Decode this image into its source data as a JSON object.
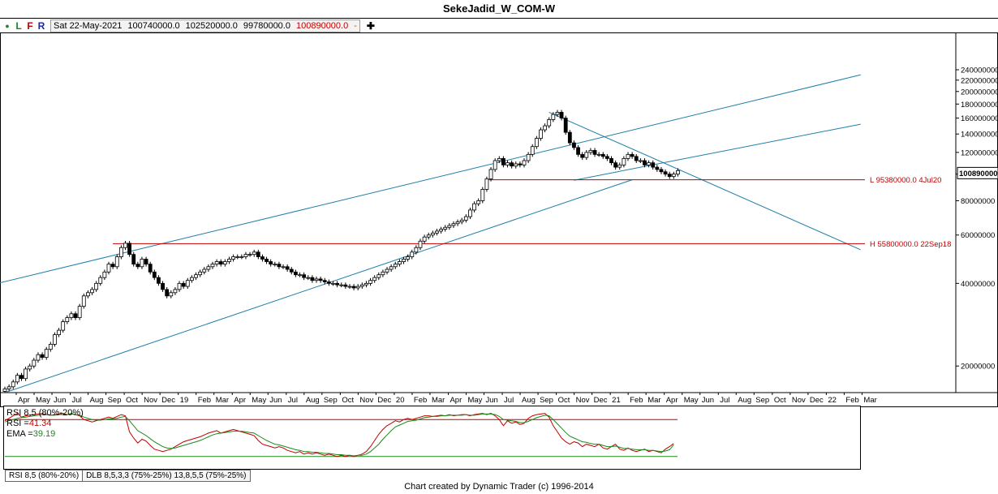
{
  "window": {
    "title": "SekeJadid_W_COM-W"
  },
  "infobar": {
    "toggles": [
      {
        "label": "●",
        "color": "#1a8a1a"
      },
      {
        "label": "L",
        "color": "#1a8a1a"
      },
      {
        "label": "F",
        "color": "#c00000"
      },
      {
        "label": "R",
        "color": "#1a2a9a"
      }
    ],
    "date": "Sat 22-May-2021",
    "open": "100740000.0",
    "high": "102520000.0",
    "low": "99780000.0",
    "close": "100890000.0",
    "change": "-",
    "add_icon": "plus-icon"
  },
  "chart_data": [
    {
      "type": "candlestick",
      "title": "SekeJadid_W_COM-W",
      "scale": "log",
      "ylim": [
        16000000,
        250000000
      ],
      "y_ticks": [
        "240000000",
        "220000000",
        "200000000",
        "180000000",
        "160000000",
        "140000000",
        "120000000",
        "100000000",
        "80000000",
        "60000000",
        "40000000",
        "20000000"
      ],
      "y_tick_values": [
        240000000,
        220000000,
        200000000,
        180000000,
        160000000,
        140000000,
        120000000,
        100000000,
        80000000,
        60000000,
        40000000,
        20000000
      ],
      "last_price_label": "100890000",
      "x_labels": [
        "Apr",
        "May",
        "Jun",
        "Jul",
        "Aug",
        "Sep",
        "Oct",
        "Nov",
        "Dec",
        "19",
        "Feb",
        "Mar",
        "Apr",
        "May",
        "Jun",
        "Jul",
        "Aug",
        "Sep",
        "Oct",
        "Nov",
        "Dec",
        "20",
        "Feb",
        "Mar",
        "Apr",
        "May",
        "Jun",
        "Jul",
        "Aug",
        "Sep",
        "Oct",
        "Nov",
        "Dec",
        "21",
        "Feb",
        "Mar",
        "Apr",
        "May",
        "Jun",
        "Jul",
        "Aug",
        "Sep",
        "Oct",
        "Nov",
        "Dec",
        "22",
        "Feb",
        "Mar"
      ],
      "x_label_weeks": [
        0,
        4.3,
        8.6,
        13,
        17.3,
        21.6,
        26,
        30.3,
        34.6,
        39,
        43.3,
        47.6,
        52,
        56.3,
        60.6,
        65,
        69.3,
        73.6,
        78,
        82.3,
        86.6,
        91,
        95.3,
        99.6,
        104,
        108.3,
        112.6,
        117,
        121.3,
        125.6,
        130,
        134.3,
        138.6,
        143,
        147.3,
        151.6,
        156,
        160.3,
        164.6,
        169,
        173.3,
        177.6,
        182,
        186.3,
        190.6,
        195,
        199.3,
        203.6
      ],
      "series": [
        {
          "name": "Weekly",
          "close": [
            16.5,
            16.8,
            17.5,
            18.5,
            18,
            19.5,
            20,
            21,
            22,
            21.5,
            23,
            24,
            26,
            27,
            29,
            30,
            31,
            30,
            33,
            36,
            37,
            38,
            40,
            42,
            44,
            47,
            46,
            50,
            54,
            56,
            51,
            47,
            46,
            49,
            47,
            44,
            42,
            40,
            38,
            36,
            37,
            38,
            40,
            39,
            41,
            42,
            43,
            44,
            45,
            46,
            47,
            48,
            47,
            48,
            49,
            50,
            50,
            50,
            51,
            51,
            52,
            50,
            49,
            48,
            47,
            47,
            46,
            46,
            45,
            44,
            43,
            43,
            42,
            42,
            41,
            41.5,
            41,
            40.5,
            40,
            40,
            39.5,
            39.5,
            39,
            39,
            38.5,
            39,
            39.5,
            40,
            41,
            42,
            43,
            44,
            45,
            46,
            47,
            48,
            49,
            50,
            52,
            54,
            57,
            59,
            60,
            61,
            62,
            63,
            64,
            65,
            66,
            67,
            68,
            70,
            74,
            78,
            80,
            88,
            96,
            104,
            112,
            114,
            108,
            110,
            107,
            109,
            108,
            112,
            118,
            126,
            135,
            145,
            150,
            158,
            165,
            168,
            160,
            142,
            130,
            125,
            118,
            115,
            120,
            122,
            118,
            118,
            116,
            114,
            110,
            106,
            108,
            114,
            118,
            116,
            112,
            112,
            108,
            110,
            106,
            104,
            102,
            100,
            98,
            100,
            103
          ]
        }
      ],
      "levels": [
        {
          "label": "L 95380000.0 4Jul20",
          "value": 95380000,
          "from_week": 116
        },
        {
          "label": "H 55800000.0 22Sep18",
          "value": 55800000,
          "from_week": 26
        }
      ],
      "trendlines": [
        {
          "name": "upper-channel",
          "points": [
            [
              -11,
              37000000
            ],
            [
              206,
              230000000
            ]
          ]
        },
        {
          "name": "middle-channel",
          "points": [
            [
              137,
              95000000
            ],
            [
              206,
              152000000
            ]
          ]
        },
        {
          "name": "lower-channel",
          "points": [
            [
              0,
              16000000
            ],
            [
              151,
              95380000
            ]
          ]
        },
        {
          "name": "down-trend",
          "points": [
            [
              131,
              168000000
            ],
            [
              206,
              53000000
            ]
          ]
        }
      ]
    },
    {
      "type": "line",
      "title": "RSI 8,5 (80%-20%)",
      "ylim": [
        0,
        100
      ],
      "upper_band": 80,
      "lower_band": 20,
      "legend": [
        {
          "label": "RSI 8,5 (80%-20%)",
          "color": "#000000"
        },
        {
          "label": "RSI =",
          "value": "41.34",
          "color": "#c00000"
        },
        {
          "label": "EMA =",
          "value": "39.19",
          "color": "#1a8a1a"
        }
      ],
      "series": [
        {
          "name": "RSI",
          "color": "#c00000",
          "values": [
            78,
            82,
            86,
            90,
            84,
            86,
            87,
            88,
            89,
            90,
            88,
            87,
            88,
            89,
            90,
            88,
            90,
            88,
            86,
            80,
            78,
            76,
            78,
            80,
            82,
            84,
            82,
            85,
            88,
            86,
            60,
            50,
            42,
            48,
            45,
            38,
            32,
            30,
            28,
            30,
            32,
            36,
            40,
            44,
            46,
            48,
            50,
            52,
            55,
            58,
            60,
            62,
            58,
            60,
            62,
            64,
            62,
            60,
            58,
            56,
            54,
            46,
            40,
            38,
            36,
            34,
            36,
            34,
            30,
            28,
            26,
            28,
            24,
            26,
            24,
            26,
            24,
            22,
            24,
            22,
            20,
            22,
            20,
            22,
            20,
            22,
            24,
            28,
            36,
            46,
            56,
            64,
            70,
            74,
            78,
            76,
            80,
            82,
            80,
            82,
            84,
            86,
            86,
            85,
            86,
            87,
            86,
            88,
            86,
            87,
            88,
            88,
            86,
            88,
            89,
            90,
            88,
            90,
            86,
            80,
            70,
            78,
            74,
            76,
            72,
            74,
            82,
            86,
            88,
            89,
            90,
            84,
            70,
            60,
            50,
            44,
            40,
            44,
            42,
            36,
            40,
            38,
            36,
            40,
            34,
            32,
            36,
            40,
            32,
            30,
            34,
            30,
            28,
            30,
            32,
            28,
            30,
            28,
            26,
            32,
            36,
            41
          ]
        },
        {
          "name": "EMA",
          "color": "#1a8a1a",
          "values": [
            76,
            78,
            80,
            82,
            83,
            84,
            85,
            86,
            87,
            88,
            88,
            87,
            87,
            88,
            88,
            88,
            89,
            88,
            87,
            84,
            82,
            80,
            79,
            79,
            80,
            81,
            81,
            82,
            84,
            85,
            78,
            70,
            62,
            58,
            54,
            49,
            44,
            40,
            36,
            34,
            33,
            34,
            36,
            38,
            40,
            42,
            44,
            46,
            49,
            52,
            55,
            57,
            58,
            59,
            60,
            61,
            61,
            61,
            60,
            59,
            58,
            54,
            50,
            46,
            43,
            40,
            39,
            37,
            35,
            33,
            31,
            30,
            28,
            28,
            27,
            27,
            26,
            25,
            25,
            24,
            23,
            23,
            22,
            22,
            21,
            22,
            22,
            24,
            28,
            34,
            40,
            48,
            55,
            62,
            68,
            71,
            74,
            77,
            78,
            79,
            81,
            83,
            84,
            85,
            85,
            86,
            86,
            87,
            87,
            87,
            87,
            88,
            87,
            87,
            88,
            89,
            89,
            89,
            88,
            85,
            80,
            79,
            78,
            77,
            75,
            75,
            77,
            80,
            83,
            85,
            87,
            86,
            80,
            73,
            66,
            59,
            53,
            50,
            47,
            44,
            43,
            41,
            40,
            40,
            38,
            36,
            36,
            37,
            35,
            33,
            33,
            32,
            31,
            31,
            31,
            30,
            30,
            29,
            28,
            29,
            31,
            39
          ]
        }
      ]
    }
  ],
  "tabs": [
    {
      "label": "RSI 8,5 (80%-20%)",
      "active": true
    },
    {
      "label": "DLB 8,5,3,3 (75%-25%) 13,8,5,5 (75%-25%)",
      "active": false
    }
  ],
  "footer": {
    "credit": "Chart created by Dynamic Trader  (c) 1996-2014"
  }
}
